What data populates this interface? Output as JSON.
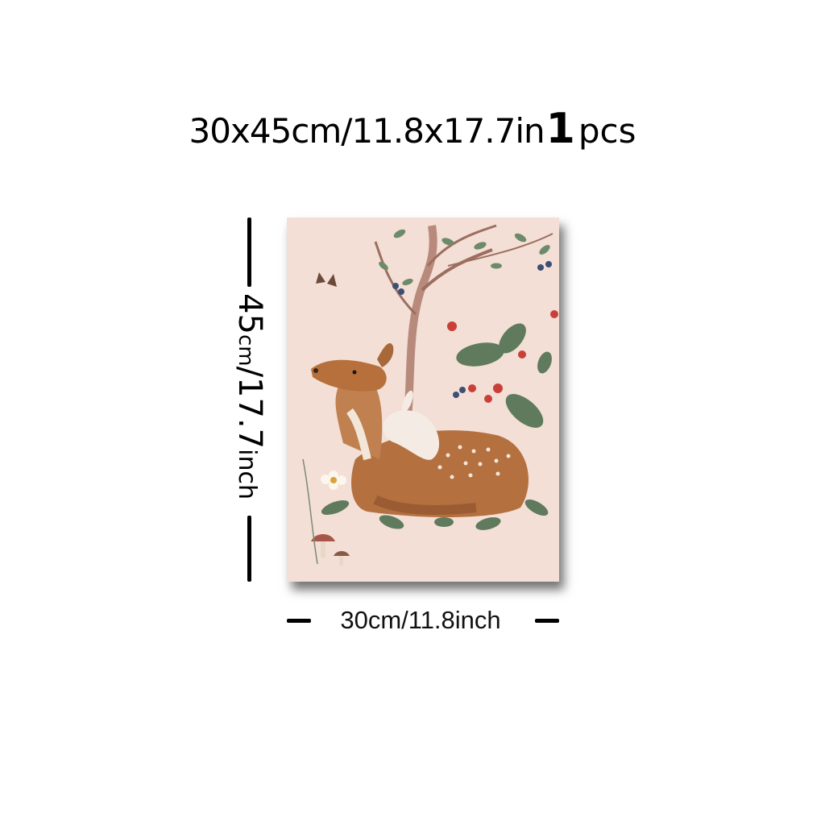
{
  "headline": {
    "size": "30x45cm/11.8x17.7in",
    "quantity_number": "1",
    "quantity_unit": "pcs"
  },
  "height_label": {
    "number": "45",
    "unit_small": "cm",
    "separator_value": "/17.7",
    "unit": "inch"
  },
  "width_label": "30cm/11.8inch",
  "artwork": {
    "subject": "deer-with-rabbit",
    "background_color": "#f3dfd5",
    "deer_color": "#b5703f",
    "leaf_color": "#5f7a5c",
    "berry_color": "#c9403a"
  }
}
